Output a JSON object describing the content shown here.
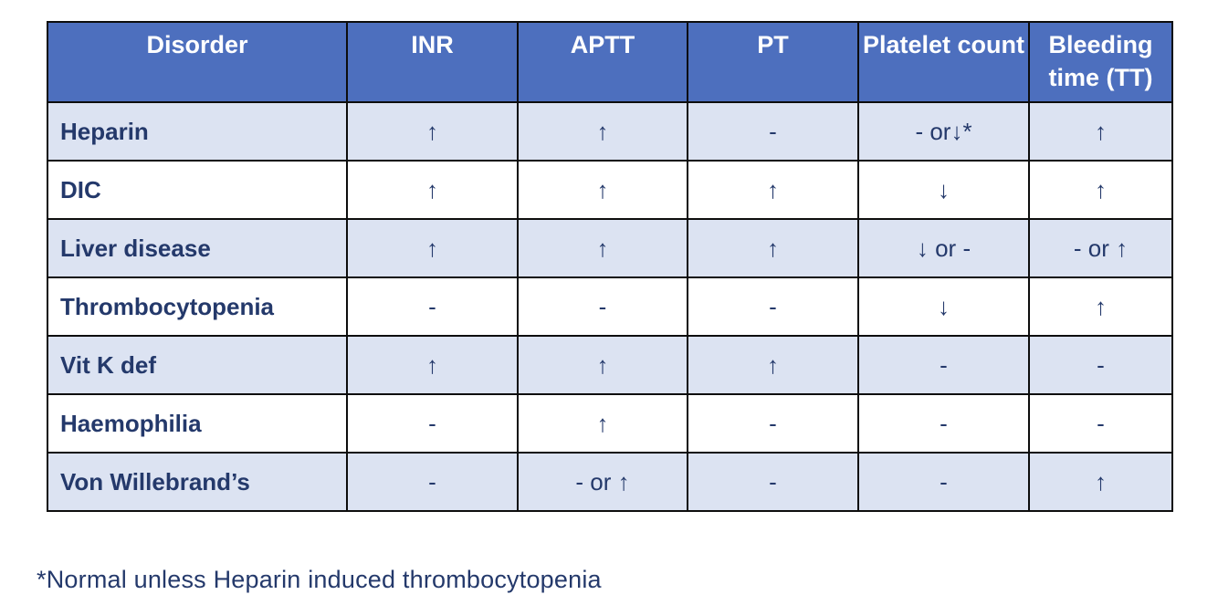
{
  "table": {
    "columns": [
      "Disorder",
      "INR",
      "APTT",
      "PT",
      "Platelet count",
      "Bleeding time (TT)"
    ],
    "rows": [
      {
        "disorder": "Heparin",
        "values": [
          "↑",
          "↑",
          "-",
          "- or↓*",
          "↑"
        ]
      },
      {
        "disorder": "DIC",
        "values": [
          "↑",
          "↑",
          "↑",
          "↓",
          "↑"
        ]
      },
      {
        "disorder": "Liver disease",
        "values": [
          "↑",
          "↑",
          "↑",
          "↓ or -",
          "- or ↑"
        ]
      },
      {
        "disorder": "Thrombocytopenia",
        "values": [
          "-",
          "-",
          "-",
          "↓",
          "↑"
        ]
      },
      {
        "disorder": "Vit K def",
        "values": [
          "↑",
          "↑",
          "↑",
          "-",
          "-"
        ]
      },
      {
        "disorder": "Haemophilia",
        "values": [
          "-",
          "↑",
          "-",
          "-",
          "-"
        ]
      },
      {
        "disorder": "Von Willebrand’s",
        "values": [
          "-",
          "- or ↑",
          "-",
          "-",
          "↑"
        ]
      }
    ]
  },
  "footnote": "*Normal unless Heparin induced thrombocytopenia",
  "colors": {
    "header_bg": "#4D6FBE",
    "header_text": "#FFFFFF",
    "row_alt_bg": "#DCE3F2",
    "row_bg": "#FFFFFF",
    "text": "#24396B",
    "border": "#0D0D0D"
  }
}
